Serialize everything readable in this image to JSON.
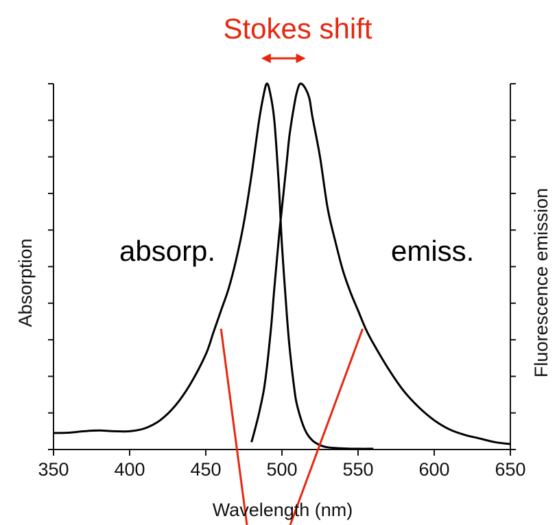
{
  "chart_data": {
    "type": "line",
    "title": "",
    "xlabel": "Wavelength (nm)",
    "ylabel_left": "Absorption",
    "ylabel_right": "Fluorescence emission",
    "xlim": [
      350,
      650
    ],
    "ylim": [
      0,
      1
    ],
    "xticks": [
      350,
      400,
      450,
      500,
      550,
      600,
      650
    ],
    "xtick_labels": [
      "350",
      "400",
      "450",
      "500",
      "550",
      "600",
      "650"
    ],
    "y_tick_count": 11,
    "grid": false,
    "series": [
      {
        "name": "absorp.",
        "x": [
          350,
          360,
          370,
          380,
          390,
          400,
          410,
          420,
          430,
          440,
          450,
          455,
          460,
          465,
          470,
          475,
          480,
          485,
          488,
          490,
          492,
          495,
          498,
          500,
          503,
          505,
          508,
          510,
          515,
          520,
          525,
          530,
          540,
          550,
          560
        ],
        "y": [
          0.045,
          0.046,
          0.05,
          0.052,
          0.05,
          0.05,
          0.058,
          0.08,
          0.12,
          0.18,
          0.26,
          0.32,
          0.38,
          0.44,
          0.52,
          0.62,
          0.75,
          0.9,
          0.97,
          1.0,
          0.98,
          0.9,
          0.72,
          0.56,
          0.38,
          0.28,
          0.17,
          0.12,
          0.055,
          0.025,
          0.012,
          0.006,
          0.003,
          0.002,
          0.002
        ]
      },
      {
        "name": "emiss.",
        "x": [
          480,
          482,
          485,
          488,
          490,
          493,
          495,
          498,
          500,
          503,
          505,
          508,
          510,
          512,
          515,
          518,
          520,
          525,
          530,
          535,
          540,
          545,
          550,
          555,
          560,
          570,
          580,
          590,
          600,
          610,
          620,
          630,
          640,
          650
        ],
        "y": [
          0.02,
          0.05,
          0.1,
          0.16,
          0.22,
          0.34,
          0.44,
          0.58,
          0.66,
          0.78,
          0.86,
          0.94,
          0.98,
          1.0,
          0.99,
          0.96,
          0.91,
          0.8,
          0.66,
          0.57,
          0.49,
          0.43,
          0.38,
          0.33,
          0.29,
          0.22,
          0.16,
          0.115,
          0.08,
          0.055,
          0.04,
          0.03,
          0.02,
          0.015
        ]
      }
    ],
    "annotations": {
      "stokes_shift_label": "Stokes shift",
      "stokes_shift_from_nm": 490,
      "stokes_shift_to_nm": 512,
      "absorp_label": "absorp.",
      "emiss_label": "emiss.",
      "pointer_absorp_start": [
        460,
        0.33
      ],
      "pointer_emiss_start": [
        553,
        0.33
      ]
    },
    "colors": {
      "curves": "#000000",
      "axes": "#111111",
      "annotation": "#e8260e"
    }
  }
}
